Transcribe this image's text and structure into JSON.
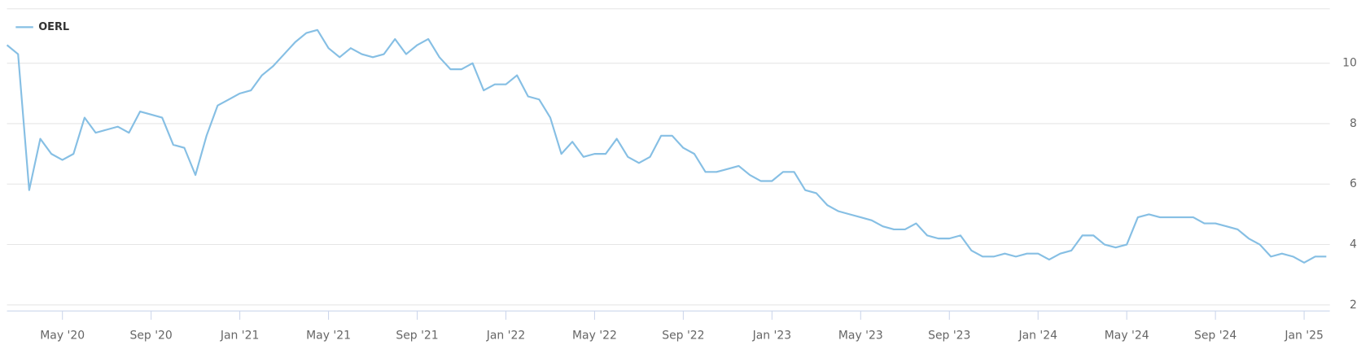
{
  "chart_data": {
    "type": "line",
    "categories": [
      null,
      null,
      null,
      null,
      null,
      "May '20",
      null,
      null,
      null,
      null,
      null,
      null,
      null,
      "Sep '20",
      null,
      null,
      null,
      null,
      null,
      null,
      null,
      "Jan '21",
      null,
      null,
      null,
      null,
      null,
      null,
      null,
      "May '21",
      null,
      null,
      null,
      null,
      null,
      null,
      null,
      "Sep '21",
      null,
      null,
      null,
      null,
      null,
      null,
      null,
      "Jan '22",
      null,
      null,
      null,
      null,
      null,
      null,
      null,
      "May '22",
      null,
      null,
      null,
      null,
      null,
      null,
      null,
      "Sep '22",
      null,
      null,
      null,
      null,
      null,
      null,
      null,
      "Jan '23",
      null,
      null,
      null,
      null,
      null,
      null,
      null,
      "May '23",
      null,
      null,
      null,
      null,
      null,
      null,
      null,
      "Sep '23",
      null,
      null,
      null,
      null,
      null,
      null,
      null,
      "Jan '24",
      null,
      null,
      null,
      null,
      null,
      null,
      null,
      "May '24",
      null,
      null,
      null,
      null,
      null,
      null,
      null,
      "Sep '24",
      null,
      null,
      null,
      null,
      null,
      null,
      null,
      "Jan '25",
      null,
      null
    ],
    "series": [
      {
        "name": "OERL",
        "color": "#86bfe4",
        "values": [
          10.6,
          10.3,
          5.8,
          7.5,
          7.0,
          6.8,
          7.0,
          8.2,
          7.7,
          7.8,
          7.9,
          7.7,
          8.4,
          8.3,
          8.2,
          7.3,
          7.2,
          6.3,
          7.6,
          8.6,
          8.8,
          9.0,
          9.1,
          9.6,
          9.9,
          10.3,
          10.7,
          11.0,
          11.1,
          10.5,
          10.2,
          10.5,
          10.3,
          10.2,
          10.3,
          10.8,
          10.3,
          10.6,
          10.8,
          10.2,
          9.8,
          9.8,
          10.0,
          9.1,
          9.3,
          9.3,
          9.6,
          8.9,
          8.8,
          8.2,
          7.0,
          7.4,
          6.9,
          7.0,
          7.0,
          7.5,
          6.9,
          6.7,
          6.9,
          7.6,
          7.6,
          7.2,
          7.0,
          6.4,
          6.4,
          6.5,
          6.6,
          6.3,
          6.1,
          6.1,
          6.4,
          6.4,
          5.8,
          5.7,
          5.3,
          5.1,
          5.0,
          4.9,
          4.8,
          4.6,
          4.5,
          4.5,
          4.7,
          4.3,
          4.2,
          4.2,
          4.3,
          3.8,
          3.6,
          3.6,
          3.7,
          3.6,
          3.7,
          3.7,
          3.5,
          3.7,
          3.8,
          4.3,
          4.3,
          4.0,
          3.9,
          4.0,
          4.9,
          5.0,
          4.9,
          4.9,
          4.9,
          4.9,
          4.7,
          4.7,
          4.6,
          4.5,
          4.2,
          4.0,
          3.6,
          3.7,
          3.6,
          3.4,
          3.6,
          3.6
        ]
      }
    ],
    "ylim": [
      1.8,
      11.8
    ],
    "yticks": [
      2,
      4,
      6,
      8,
      10
    ],
    "grid": true,
    "legend": "top-left"
  }
}
